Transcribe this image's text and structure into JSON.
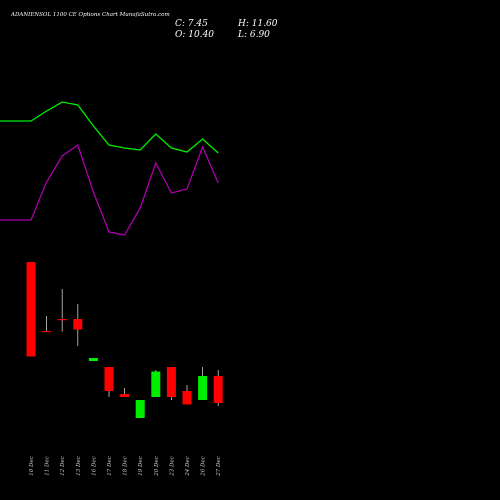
{
  "header": {
    "title": "ADANIENSOL 1100 CE Options Chart MunafaSutra.com",
    "close": "C: 7.45",
    "open": "O: 10.40",
    "high": "H: 11.60",
    "low": "L: 6.90"
  },
  "colors": {
    "background": "#000000",
    "upper_line": "#00ee00",
    "lower_line": "#aa00aa",
    "up_candle": "#00ee00",
    "down_candle": "#ff0000",
    "wick": "#cccccc"
  },
  "chart_data": {
    "type": "candlestick",
    "categories": [
      "10 Dec",
      "11 Dec",
      "12 Dec",
      "13 Dec",
      "16 Dec",
      "17 Dec",
      "18 Dec",
      "19 Dec",
      "20 Dec",
      "23 Dec",
      "24 Dec",
      "26 Dec",
      "27 Dec"
    ],
    "candles": [
      {
        "open": 40.0,
        "close": 8.5,
        "high": 40.0,
        "low": 8.5,
        "dir": "down"
      },
      {
        "open": 17.0,
        "close": 16.8,
        "high": 22.0,
        "low": 16.8,
        "dir": "down"
      },
      {
        "open": 21.0,
        "close": 20.8,
        "high": 31.0,
        "low": 16.8,
        "dir": "down"
      },
      {
        "open": 21.0,
        "close": 17.5,
        "high": 26.0,
        "low": 12.0,
        "dir": "down"
      },
      {
        "open": 7.0,
        "close": 8.0,
        "high": 8.0,
        "low": 7.0,
        "dir": "up"
      },
      {
        "open": 5.0,
        "close": -3.0,
        "high": 5.0,
        "low": -5.0,
        "dir": "down"
      },
      {
        "open": -4.0,
        "close": -5.0,
        "high": -2.0,
        "low": -5.0,
        "dir": "down"
      },
      {
        "open": -12.0,
        "close": -6.0,
        "high": -6.0,
        "low": -12.0,
        "dir": "up"
      },
      {
        "open": -5.0,
        "close": 3.5,
        "high": 4.0,
        "low": -5.0,
        "dir": "up"
      },
      {
        "open": 5.0,
        "close": -5.0,
        "high": 5.0,
        "low": -6.0,
        "dir": "down"
      },
      {
        "open": -3.0,
        "close": -7.5,
        "high": -1.0,
        "low": -7.5,
        "dir": "down"
      },
      {
        "open": -6.0,
        "close": 2.0,
        "high": 5.0,
        "low": -6.0,
        "dir": "up"
      },
      {
        "open": 2.0,
        "close": -7.0,
        "high": 4.0,
        "low": -8.0,
        "dir": "down"
      }
    ],
    "upper_line": [
      121,
      121,
      111,
      102,
      105,
      126,
      145,
      148,
      150,
      134,
      148,
      152,
      139,
      153
    ],
    "lower_line": [
      220,
      220,
      182,
      156,
      145,
      192,
      232,
      235,
      208,
      163,
      193,
      189,
      147,
      183
    ],
    "line_x_index": [
      -0.9,
      0,
      1,
      2,
      3,
      4,
      5,
      6,
      7,
      8,
      9,
      10,
      11,
      12
    ]
  }
}
